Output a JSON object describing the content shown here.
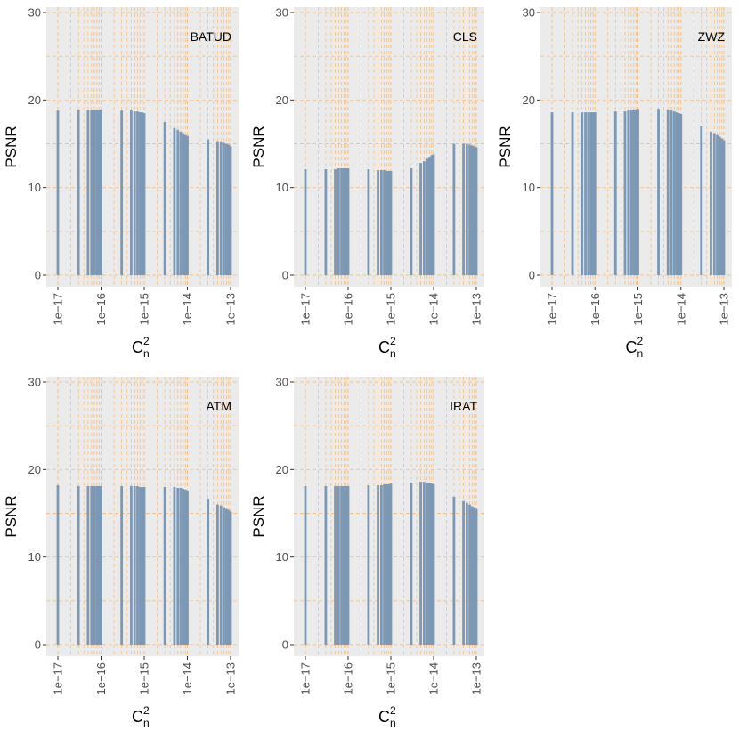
{
  "chart_data": [
    {
      "type": "bar",
      "title": "BATUD",
      "xlabel": "Cn2",
      "ylabel": "PSNR",
      "x_scale": "log10",
      "xlim": [
        1e-17,
        1e-13
      ],
      "ylim": [
        0,
        30
      ],
      "x": [
        1e-17,
        3e-17,
        5e-17,
        6e-17,
        7e-17,
        8e-17,
        9e-17,
        1e-16,
        3e-16,
        5e-16,
        6e-16,
        7e-16,
        8e-16,
        9e-16,
        1e-15,
        3e-15,
        5e-15,
        6e-15,
        7e-15,
        8e-15,
        9e-15,
        1e-14,
        3e-14,
        5e-14,
        6e-14,
        7e-14,
        8e-14,
        9e-14,
        1e-13
      ],
      "values": [
        18.8,
        18.9,
        18.9,
        18.9,
        18.9,
        18.9,
        18.9,
        18.9,
        18.8,
        18.8,
        18.7,
        18.7,
        18.6,
        18.6,
        18.5,
        17.5,
        16.8,
        16.6,
        16.4,
        16.2,
        16.0,
        15.9,
        15.5,
        15.3,
        15.2,
        15.1,
        15.0,
        14.9,
        14.7
      ]
    },
    {
      "type": "bar",
      "title": "CLS",
      "xlabel": "Cn2",
      "ylabel": "PSNR",
      "x_scale": "log10",
      "xlim": [
        1e-17,
        1e-13
      ],
      "ylim": [
        0,
        30
      ],
      "x": [
        1e-17,
        3e-17,
        5e-17,
        6e-17,
        7e-17,
        8e-17,
        9e-17,
        1e-16,
        3e-16,
        5e-16,
        6e-16,
        7e-16,
        8e-16,
        9e-16,
        1e-15,
        3e-15,
        5e-15,
        6e-15,
        7e-15,
        8e-15,
        9e-15,
        1e-14,
        3e-14,
        5e-14,
        6e-14,
        7e-14,
        8e-14,
        9e-14,
        1e-13
      ],
      "values": [
        12.1,
        12.1,
        12.1,
        12.2,
        12.2,
        12.2,
        12.2,
        12.2,
        12.1,
        12.0,
        12.0,
        12.0,
        11.9,
        11.9,
        11.9,
        12.2,
        12.8,
        13.0,
        13.3,
        13.5,
        13.7,
        13.8,
        15.0,
        15.0,
        15.0,
        14.9,
        14.8,
        14.7,
        14.6
      ]
    },
    {
      "type": "bar",
      "title": "ZWZ",
      "xlabel": "Cn2",
      "ylabel": "PSNR",
      "x_scale": "log10",
      "xlim": [
        1e-17,
        1e-13
      ],
      "ylim": [
        0,
        30
      ],
      "x": [
        1e-17,
        3e-17,
        5e-17,
        6e-17,
        7e-17,
        8e-17,
        9e-17,
        1e-16,
        3e-16,
        5e-16,
        6e-16,
        7e-16,
        8e-16,
        9e-16,
        1e-15,
        3e-15,
        5e-15,
        6e-15,
        7e-15,
        8e-15,
        9e-15,
        1e-14,
        3e-14,
        5e-14,
        6e-14,
        7e-14,
        8e-14,
        9e-14,
        1e-13
      ],
      "values": [
        18.6,
        18.6,
        18.6,
        18.6,
        18.6,
        18.6,
        18.6,
        18.6,
        18.7,
        18.7,
        18.8,
        18.8,
        18.9,
        18.9,
        19.0,
        19.0,
        18.9,
        18.8,
        18.7,
        18.6,
        18.5,
        18.4,
        17.0,
        16.4,
        16.2,
        16.0,
        15.8,
        15.6,
        15.4
      ]
    },
    {
      "type": "bar",
      "title": "ATM",
      "xlabel": "Cn2",
      "ylabel": "PSNR",
      "x_scale": "log10",
      "xlim": [
        1e-17,
        1e-13
      ],
      "ylim": [
        0,
        30
      ],
      "x": [
        1e-17,
        3e-17,
        5e-17,
        6e-17,
        7e-17,
        8e-17,
        9e-17,
        1e-16,
        3e-16,
        5e-16,
        6e-16,
        7e-16,
        8e-16,
        9e-16,
        1e-15,
        3e-15,
        5e-15,
        6e-15,
        7e-15,
        8e-15,
        9e-15,
        1e-14,
        3e-14,
        5e-14,
        6e-14,
        7e-14,
        8e-14,
        9e-14,
        1e-13
      ],
      "values": [
        18.2,
        18.1,
        18.1,
        18.1,
        18.1,
        18.1,
        18.1,
        18.1,
        18.1,
        18.1,
        18.1,
        18.1,
        18.0,
        18.0,
        18.0,
        18.0,
        18.0,
        17.9,
        17.9,
        17.8,
        17.7,
        17.6,
        16.6,
        16.0,
        15.9,
        15.7,
        15.5,
        15.4,
        15.2
      ]
    },
    {
      "type": "bar",
      "title": "IRAT",
      "xlabel": "Cn2",
      "ylabel": "PSNR",
      "x_scale": "log10",
      "xlim": [
        1e-17,
        1e-13
      ],
      "ylim": [
        0,
        30
      ],
      "x": [
        1e-17,
        3e-17,
        5e-17,
        6e-17,
        7e-17,
        8e-17,
        9e-17,
        1e-16,
        3e-16,
        5e-16,
        6e-16,
        7e-16,
        8e-16,
        9e-16,
        1e-15,
        3e-15,
        5e-15,
        6e-15,
        7e-15,
        8e-15,
        9e-15,
        1e-14,
        3e-14,
        5e-14,
        6e-14,
        7e-14,
        8e-14,
        9e-14,
        1e-13
      ],
      "values": [
        18.1,
        18.1,
        18.1,
        18.1,
        18.1,
        18.1,
        18.1,
        18.1,
        18.2,
        18.2,
        18.2,
        18.3,
        18.3,
        18.3,
        18.4,
        18.5,
        18.6,
        18.6,
        18.5,
        18.5,
        18.4,
        18.3,
        16.9,
        16.4,
        16.2,
        16.0,
        15.8,
        15.7,
        15.5
      ]
    }
  ],
  "axis_text": {
    "y_ticks": [
      "0",
      "10",
      "20",
      "30"
    ],
    "x_ticks": [
      "1e−17",
      "1e−16",
      "1e−15",
      "1e−14",
      "1e−13"
    ],
    "y_label": "PSNR",
    "x_label_base": "C",
    "x_label_sup": "2",
    "x_label_sub": "n"
  },
  "colors": {
    "panel_bg": "#ebebeb",
    "bar_fill": "#7c98b4",
    "grid": "#f5bf83",
    "tick_text": "#4d4d4d",
    "label_text": "#000000"
  }
}
